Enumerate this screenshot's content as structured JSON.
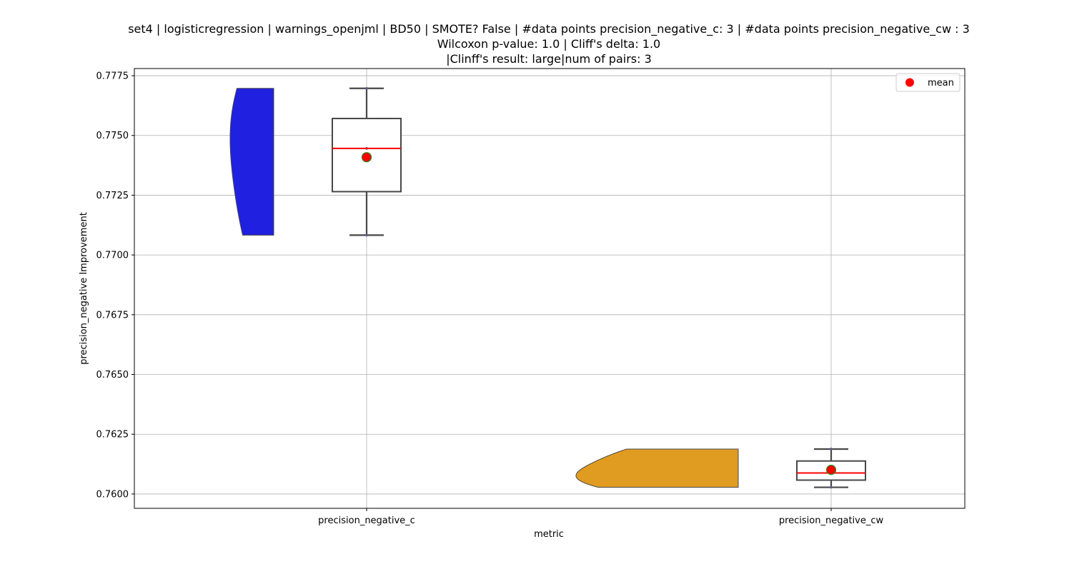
{
  "chart_data": {
    "type": "box",
    "title_lines": [
      "set4 | logisticregression | warnings_openjml | BD50 | SMOTE? False | #data points precision_negative_c: 3 | #data points precision_negative_cw : 3",
      "Wilcoxon p-value: 1.0 | Cliff's delta: 1.0",
      "|Clinff's result: large|num of pairs: 3"
    ],
    "xlabel": "metric",
    "ylabel": "precision_negative Improvement",
    "categories": [
      "precision_negative_c",
      "precision_negative_cw"
    ],
    "ylim": [
      0.7594,
      0.7778
    ],
    "yticks": [
      0.76,
      0.7625,
      0.765,
      0.7675,
      0.77,
      0.7725,
      0.775,
      0.7775
    ],
    "ytick_labels": [
      "0.7600",
      "0.7625",
      "0.7650",
      "0.7675",
      "0.7700",
      "0.7725",
      "0.7750",
      "0.7775"
    ],
    "grid": true,
    "legend": {
      "placement": "top-right",
      "entries": [
        {
          "label": "mean",
          "color": "#ff0000"
        }
      ]
    },
    "series": [
      {
        "category": "precision_negative_c",
        "points": [
          0.77083,
          0.77446,
          0.77697
        ],
        "min": 0.77083,
        "q1": 0.77265,
        "median": 0.77446,
        "q3": 0.77571,
        "max": 0.77697,
        "mean": 0.77409,
        "violin_color": "#2020e0"
      },
      {
        "category": "precision_negative_cw",
        "points": [
          0.76028,
          0.76088,
          0.76188
        ],
        "min": 0.76028,
        "q1": 0.76058,
        "median": 0.76088,
        "q3": 0.76138,
        "max": 0.76188,
        "mean": 0.76101,
        "violin_color": "#e09c20"
      }
    ],
    "colors": {
      "median": "#ff0000",
      "mean_fill": "#ff0000",
      "mean_edge": "#228b22",
      "box_edge": "#474747",
      "grid": "#b0b0b0"
    }
  }
}
